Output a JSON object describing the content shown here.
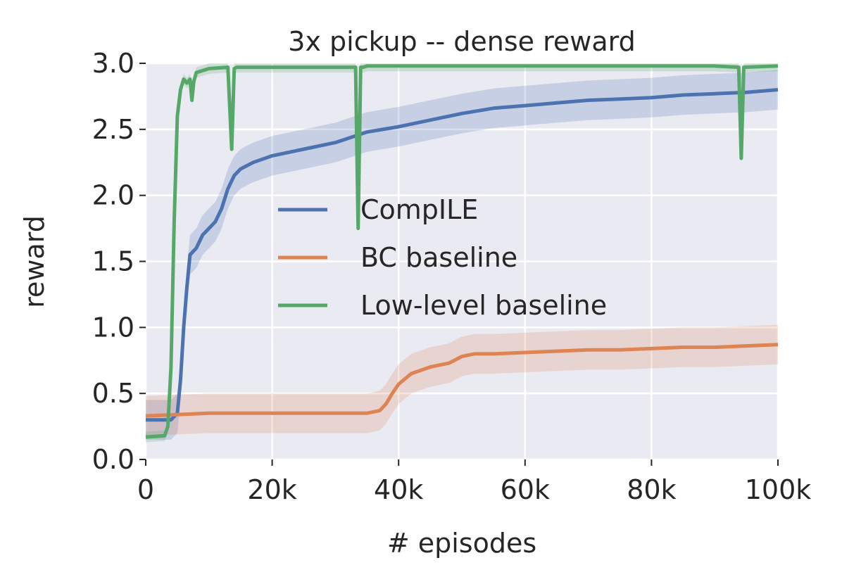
{
  "chart_data": {
    "type": "line",
    "title": "3x pickup -- dense reward",
    "xlabel": "# episodes",
    "ylabel": "reward",
    "xlim": [
      0,
      100000
    ],
    "ylim": [
      0,
      3.0
    ],
    "x_ticks": [
      0,
      20000,
      40000,
      60000,
      80000,
      100000
    ],
    "x_tick_labels": [
      "0",
      "20k",
      "40k",
      "60k",
      "80k",
      "100k"
    ],
    "y_ticks": [
      0,
      0.5,
      1.0,
      1.5,
      2.0,
      2.5,
      3.0
    ],
    "y_tick_labels": [
      "0.0",
      "0.5",
      "1.0",
      "1.5",
      "2.0",
      "2.5",
      "3.0"
    ],
    "grid": true,
    "legend_position": "center",
    "series": [
      {
        "name": "CompILE",
        "color": "#4c72b0",
        "x": [
          0,
          2000,
          3000,
          4000,
          5000,
          5500,
          6000,
          6500,
          7000,
          8000,
          9000,
          10000,
          11000,
          12000,
          13000,
          14000,
          15000,
          17000,
          20000,
          25000,
          30000,
          35000,
          40000,
          45000,
          50000,
          55000,
          60000,
          65000,
          70000,
          75000,
          80000,
          85000,
          90000,
          95000,
          100000
        ],
        "y": [
          0.3,
          0.3,
          0.3,
          0.3,
          0.35,
          0.6,
          1.0,
          1.3,
          1.55,
          1.6,
          1.7,
          1.75,
          1.8,
          1.9,
          2.05,
          2.15,
          2.2,
          2.25,
          2.3,
          2.35,
          2.4,
          2.48,
          2.52,
          2.57,
          2.62,
          2.66,
          2.68,
          2.7,
          2.72,
          2.73,
          2.74,
          2.76,
          2.77,
          2.78,
          2.8
        ],
        "band_width": 0.15
      },
      {
        "name": "BC baseline",
        "color": "#dd8452",
        "x": [
          0,
          5000,
          10000,
          15000,
          20000,
          25000,
          30000,
          35000,
          37000,
          38000,
          39000,
          40000,
          42000,
          45000,
          48000,
          50000,
          52000,
          55000,
          60000,
          65000,
          70000,
          75000,
          80000,
          85000,
          90000,
          95000,
          100000
        ],
        "y": [
          0.33,
          0.34,
          0.35,
          0.35,
          0.35,
          0.35,
          0.35,
          0.35,
          0.37,
          0.42,
          0.5,
          0.57,
          0.65,
          0.7,
          0.73,
          0.78,
          0.8,
          0.8,
          0.81,
          0.82,
          0.83,
          0.83,
          0.84,
          0.85,
          0.85,
          0.86,
          0.87
        ],
        "band_width": 0.15
      },
      {
        "name": "Low-level baseline",
        "color": "#55a868",
        "x": [
          0,
          3000,
          3500,
          4000,
          4500,
          5000,
          5500,
          6000,
          6500,
          7000,
          7300,
          7600,
          8000,
          10000,
          13000,
          13600,
          14000,
          14400,
          15000,
          20000,
          30000,
          33200,
          33600,
          34000,
          34400,
          35000,
          50000,
          70000,
          90000,
          93800,
          94200,
          94600,
          100000
        ],
        "y": [
          0.17,
          0.18,
          0.25,
          0.7,
          1.8,
          2.6,
          2.8,
          2.88,
          2.85,
          2.88,
          2.72,
          2.86,
          2.93,
          2.96,
          2.97,
          2.35,
          2.96,
          2.97,
          2.97,
          2.97,
          2.97,
          2.97,
          1.75,
          2.97,
          2.97,
          2.98,
          2.98,
          2.98,
          2.98,
          2.97,
          2.28,
          2.97,
          2.98
        ],
        "band_width": 0.04
      }
    ]
  }
}
